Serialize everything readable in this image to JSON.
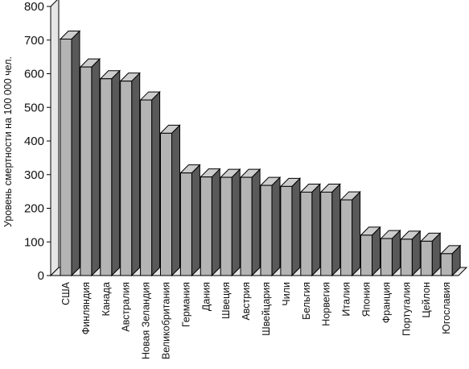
{
  "chart_data": {
    "type": "bar",
    "style": "3d",
    "title": "",
    "xlabel": "",
    "ylabel": "Уровень смертности на 100 000 чел.",
    "ylim": [
      0,
      800
    ],
    "yticks": [
      0,
      100,
      200,
      300,
      400,
      500,
      600,
      700,
      800
    ],
    "grid": false,
    "categories": [
      "США",
      "Финляндия",
      "Канада",
      "Австралия",
      "Новая Зеландия",
      "Великобритания",
      "Германия",
      "Дания",
      "Швеция",
      "Австрия",
      "Швейцария",
      "Чили",
      "Бельгия",
      "Норвегия",
      "Италия",
      "Япония",
      "Франция",
      "Португалия",
      "Цейлон",
      "Югославия"
    ],
    "values": [
      703,
      620,
      585,
      578,
      522,
      423,
      305,
      293,
      292,
      292,
      268,
      265,
      248,
      248,
      225,
      120,
      110,
      108,
      102,
      65
    ],
    "colors": {
      "front": "#b4b4b4",
      "side": "#595959",
      "top": "#cdcdcd",
      "wall": "#e6e6e6",
      "floor": "#e6e6e6",
      "outline": "#000000"
    }
  }
}
